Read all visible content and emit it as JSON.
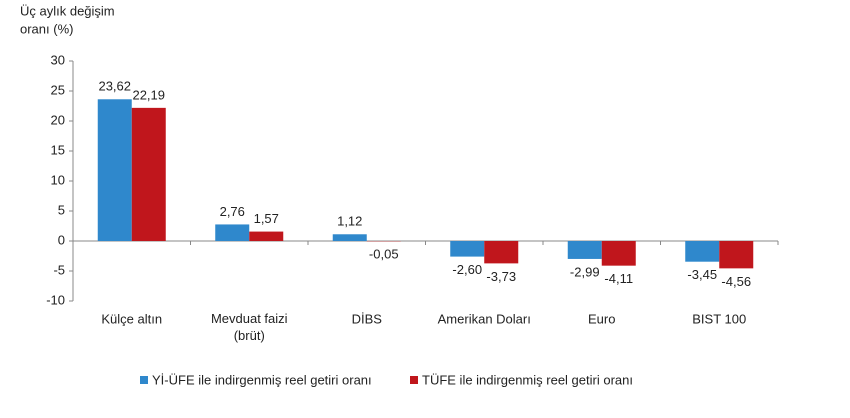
{
  "chart_data": {
    "type": "bar",
    "ylabel": [
      "Üç aylık değişim",
      "oranı (%)"
    ],
    "categories": [
      "Külçe altın",
      "Mevduat faizi\n(brüt)",
      "DİBS",
      "Amerikan Doları",
      "Euro",
      "BIST 100"
    ],
    "series": [
      {
        "name": "Yİ-ÜFE ile indirgenmiş reel getiri oranı",
        "color": "#2f88cc",
        "values": [
          23.62,
          2.76,
          1.12,
          -2.6,
          -2.99,
          -3.45
        ],
        "value_labels": [
          "23,62",
          "2,76",
          "1,12",
          "-2,60",
          "-2,99",
          "-3,45"
        ]
      },
      {
        "name": "TÜFE ile indirgenmiş reel getiri oranı",
        "color": "#c0161c",
        "values": [
          22.19,
          1.57,
          -0.05,
          -3.73,
          -4.11,
          -4.56
        ],
        "value_labels": [
          "22,19",
          "1,57",
          "-0,05",
          "-3,73",
          "-4,11",
          "-4,56"
        ]
      }
    ],
    "ylim": [
      -10,
      30
    ],
    "yticks": [
      -10,
      -5,
      0,
      5,
      10,
      15,
      20,
      25,
      30
    ],
    "grid": false,
    "legend": "bottom"
  }
}
